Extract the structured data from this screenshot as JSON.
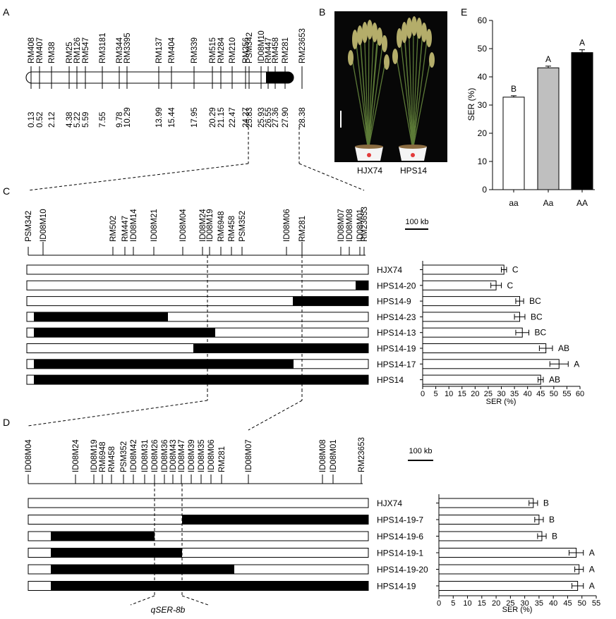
{
  "panel_letters": {
    "a": "A",
    "b": "B",
    "c": "C",
    "d": "D",
    "e": "E"
  },
  "panel_a": {
    "markers": [
      "RM408",
      "RM407",
      "RM38",
      "RM25",
      "RM126",
      "RM547",
      "RM3181",
      "RM344",
      "RM3395",
      "RM137",
      "RM404",
      "RM339",
      "RM515",
      "RM284",
      "RM210",
      "RM256",
      "PSM342",
      "ID08M10",
      "RM447",
      "RM458",
      "RM281",
      "RM23653"
    ],
    "positions": [
      "0.13",
      "0.52",
      "2.12",
      "4.38",
      "5.22",
      "5.59",
      "7.55",
      "9.78",
      "10.29",
      "13.99",
      "15.44",
      "17.95",
      "20.29",
      "21.15",
      "22.47",
      "24.27",
      "25.83",
      "25.93",
      "26.55",
      "27.36",
      "27.90",
      "28.38"
    ]
  },
  "panel_b": {
    "labels": [
      "HJX74",
      "HPS14"
    ]
  },
  "panel_c": {
    "markers": [
      "PSM342",
      "ID08M10",
      "RM502",
      "RM447",
      "ID08M14",
      "ID08M21",
      "ID08M04",
      "ID08M24",
      "ID08M19",
      "RM6948",
      "RM458",
      "PSM352",
      "ID08M06",
      "RM281",
      "ID08M07",
      "ID08M08",
      "ID08M01",
      "RM23653"
    ],
    "scale_label": "100 kb",
    "lines": [
      "HJX74",
      "HPS14-20",
      "HPS14-9",
      "HPS14-23",
      "HPS14-13",
      "HPS14-19",
      "HPS14-17",
      "HPS14"
    ],
    "letters": [
      "C",
      "C",
      "BC",
      "BC",
      "BC",
      "AB",
      "A",
      "AB"
    ]
  },
  "panel_d": {
    "markers": [
      "ID08M04",
      "ID08M24",
      "ID08M19",
      "RM6948",
      "RM458",
      "PSM352",
      "ID08M42",
      "ID08M31",
      "ID08M26",
      "ID08M36",
      "ID08M43",
      "ID08M47",
      "ID08M39",
      "ID08M35",
      "ID08M06",
      "RM281",
      "ID08M07",
      "ID08M08",
      "ID08M01",
      "RM23653"
    ],
    "scale_label": "100 kb",
    "qtl_label": "qSER-8b",
    "lines": [
      "HJX74",
      "HPS14-19-7",
      "HPS14-19-6",
      "HPS14-19-1",
      "HPS14-19-20",
      "HPS14-19"
    ],
    "letters": [
      "B",
      "B",
      "B",
      "A",
      "A",
      "A"
    ]
  },
  "chart_data": [
    {
      "type": "bar",
      "categories": [
        "aa",
        "Aa",
        "AA"
      ],
      "values": [
        32.8,
        43.2,
        48.6
      ],
      "errors": [
        0.5,
        0.6,
        1.0
      ],
      "letters": [
        "B",
        "A",
        "A"
      ],
      "colors": [
        "#ffffff",
        "#bfbfbf",
        "#000000"
      ],
      "ylabel": "SER (%)",
      "ylim": [
        0,
        60
      ],
      "yticks": [
        "0",
        "10",
        "20",
        "30",
        "40",
        "50",
        "60"
      ]
    },
    {
      "type": "bar",
      "orientation": "horizontal",
      "categories": [
        "HJX74",
        "HPS14-20",
        "HPS14-9",
        "HPS14-23",
        "HPS14-13",
        "HPS14-19",
        "HPS14-17",
        "HPS14"
      ],
      "values": [
        31.0,
        28.0,
        37.0,
        37.0,
        38.0,
        47.0,
        52.0,
        45.0
      ],
      "errors": [
        1.0,
        2.0,
        1.5,
        2.0,
        2.5,
        2.5,
        3.5,
        1.0
      ],
      "xlabel": "SER (%)",
      "xlim": [
        0,
        60
      ],
      "xticks": [
        "0",
        "5",
        "10",
        "15",
        "20",
        "25",
        "30",
        "35",
        "40",
        "45",
        "50",
        "55",
        "60"
      ]
    },
    {
      "type": "bar",
      "orientation": "horizontal",
      "categories": [
        "HJX74",
        "HPS14-19-7",
        "HPS14-19-6",
        "HPS14-19-1",
        "HPS14-19-20",
        "HPS14-19"
      ],
      "values": [
        33.0,
        35.0,
        36.0,
        48.0,
        49.0,
        48.5
      ],
      "errors": [
        1.5,
        1.5,
        1.5,
        2.5,
        1.5,
        2.0
      ],
      "xlabel": "SER (%)",
      "xlim": [
        0,
        55
      ],
      "xticks": [
        "0",
        "5",
        "10",
        "15",
        "20",
        "25",
        "30",
        "35",
        "40",
        "45",
        "50",
        "55"
      ]
    }
  ]
}
